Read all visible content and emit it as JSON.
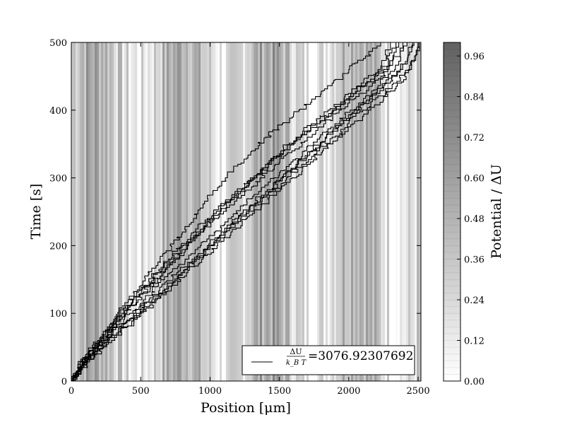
{
  "chart_data": {
    "type": "line",
    "xlabel": "Position [μm]",
    "ylabel": "Time [s]",
    "xlim": [
      0,
      2520
    ],
    "ylim": [
      0,
      500
    ],
    "xticks": [
      0,
      500,
      1000,
      1500,
      2000,
      2500
    ],
    "yticks": [
      0,
      100,
      200,
      300,
      400,
      500
    ],
    "grid": false,
    "background": "grayscale vertical potential bands",
    "legend": {
      "placement": "lower-right",
      "entry_numerator": "ΔU",
      "entry_denominator": "k_B T",
      "entry_value": "=3076.92307692"
    },
    "colorbar": {
      "label": "Potential / ΔU",
      "ticks": [
        "0.00",
        "0.12",
        "0.24",
        "0.36",
        "0.48",
        "0.60",
        "0.72",
        "0.84",
        "0.96"
      ],
      "range": [
        0,
        1
      ],
      "colormap": "gray_r"
    },
    "series": [
      {
        "x": [
          0,
          60,
          150,
          240,
          330,
          450,
          560,
          650,
          760,
          870,
          980,
          1080,
          1180,
          1290,
          1400,
          1510,
          1620,
          1730,
          1830,
          1940,
          2040,
          2150,
          2260,
          2370,
          2460
        ],
        "y": [
          0,
          20,
          40,
          60,
          80,
          100,
          120,
          140,
          160,
          180,
          200,
          220,
          240,
          260,
          280,
          300,
          320,
          340,
          360,
          380,
          400,
          420,
          440,
          460,
          500
        ]
      },
      {
        "x": [
          0,
          50,
          120,
          200,
          270,
          340,
          410,
          490,
          560,
          640,
          720,
          800,
          880,
          950,
          1020,
          1110,
          1200,
          1300,
          1400,
          1520,
          1640,
          1760,
          1880,
          2000,
          2120,
          2230
        ],
        "y": [
          0,
          20,
          40,
          60,
          80,
          100,
          120,
          140,
          160,
          180,
          200,
          220,
          240,
          260,
          280,
          300,
          320,
          340,
          360,
          380,
          400,
          420,
          440,
          460,
          480,
          500
        ]
      },
      {
        "x": [
          0,
          70,
          160,
          260,
          360,
          470,
          580,
          690,
          800,
          900,
          1000,
          1110,
          1220,
          1330,
          1440,
          1550,
          1660,
          1770,
          1880,
          1990,
          2100,
          2210,
          2320,
          2430,
          2510
        ],
        "y": [
          0,
          20,
          40,
          60,
          80,
          100,
          120,
          140,
          160,
          180,
          200,
          220,
          240,
          260,
          280,
          300,
          320,
          340,
          360,
          380,
          400,
          420,
          440,
          460,
          500
        ]
      },
      {
        "x": [
          0,
          55,
          130,
          220,
          300,
          390,
          480,
          570,
          660,
          750,
          840,
          930,
          1020,
          1120,
          1220,
          1320,
          1420,
          1530,
          1640,
          1760,
          1880,
          2000,
          2120,
          2240,
          2340
        ],
        "y": [
          0,
          20,
          40,
          60,
          80,
          100,
          120,
          140,
          160,
          180,
          200,
          220,
          240,
          260,
          280,
          300,
          320,
          340,
          360,
          380,
          400,
          420,
          440,
          460,
          500
        ]
      },
      {
        "x": [
          0,
          65,
          140,
          230,
          320,
          420,
          520,
          620,
          710,
          820,
          930,
          1030,
          1130,
          1240,
          1350,
          1460,
          1570,
          1680,
          1790,
          1900,
          2010,
          2120,
          2230,
          2330,
          2420
        ],
        "y": [
          0,
          20,
          40,
          60,
          80,
          100,
          120,
          140,
          160,
          180,
          200,
          220,
          240,
          260,
          280,
          300,
          320,
          340,
          360,
          380,
          400,
          420,
          440,
          460,
          500
        ]
      },
      {
        "x": [
          0,
          45,
          110,
          190,
          260,
          350,
          440,
          520,
          610,
          700,
          790,
          880,
          980,
          1080,
          1180,
          1290,
          1400,
          1510,
          1620,
          1730,
          1850,
          1970,
          2090,
          2210,
          2300
        ],
        "y": [
          0,
          20,
          40,
          60,
          80,
          100,
          120,
          140,
          160,
          180,
          200,
          220,
          240,
          260,
          280,
          300,
          320,
          340,
          360,
          380,
          400,
          420,
          440,
          460,
          500
        ]
      },
      {
        "x": [
          0,
          75,
          170,
          270,
          380,
          490,
          600,
          700,
          790,
          890,
          990,
          1100,
          1200,
          1310,
          1420,
          1520,
          1630,
          1740,
          1840,
          1950,
          2060,
          2170,
          2270,
          2370,
          2470
        ],
        "y": [
          0,
          20,
          40,
          60,
          80,
          100,
          120,
          140,
          160,
          180,
          200,
          220,
          240,
          260,
          280,
          300,
          320,
          340,
          360,
          380,
          400,
          420,
          440,
          460,
          500
        ]
      },
      {
        "x": [
          0,
          60,
          135,
          215,
          300,
          380,
          470,
          560,
          650,
          740,
          830,
          930,
          1030,
          1140,
          1250,
          1360,
          1470,
          1590,
          1700,
          1820,
          1930,
          2050,
          2170,
          2280,
          2390
        ],
        "y": [
          0,
          20,
          40,
          60,
          80,
          100,
          120,
          140,
          160,
          180,
          200,
          220,
          240,
          260,
          280,
          300,
          320,
          340,
          360,
          380,
          400,
          420,
          440,
          460,
          500
        ]
      },
      {
        "x": [
          0,
          80,
          180,
          290,
          400,
          500,
          610,
          720,
          830,
          940,
          1050,
          1150,
          1260,
          1370,
          1480,
          1590,
          1700,
          1810,
          1920,
          2030,
          2140,
          2250,
          2350,
          2440,
          2500
        ],
        "y": [
          0,
          20,
          40,
          60,
          80,
          100,
          120,
          140,
          160,
          180,
          200,
          220,
          240,
          260,
          280,
          300,
          320,
          340,
          360,
          380,
          400,
          420,
          440,
          460,
          500
        ]
      },
      {
        "x": [
          0,
          55,
          125,
          205,
          285,
          365,
          445,
          530,
          620,
          710,
          800,
          900,
          1000,
          1100,
          1200,
          1310,
          1420,
          1530,
          1650,
          1770,
          1890,
          2010,
          2130,
          2250,
          2360
        ],
        "y": [
          0,
          20,
          40,
          60,
          80,
          100,
          120,
          140,
          160,
          180,
          200,
          220,
          240,
          260,
          280,
          300,
          320,
          340,
          360,
          380,
          400,
          420,
          440,
          460,
          500
        ]
      }
    ]
  }
}
